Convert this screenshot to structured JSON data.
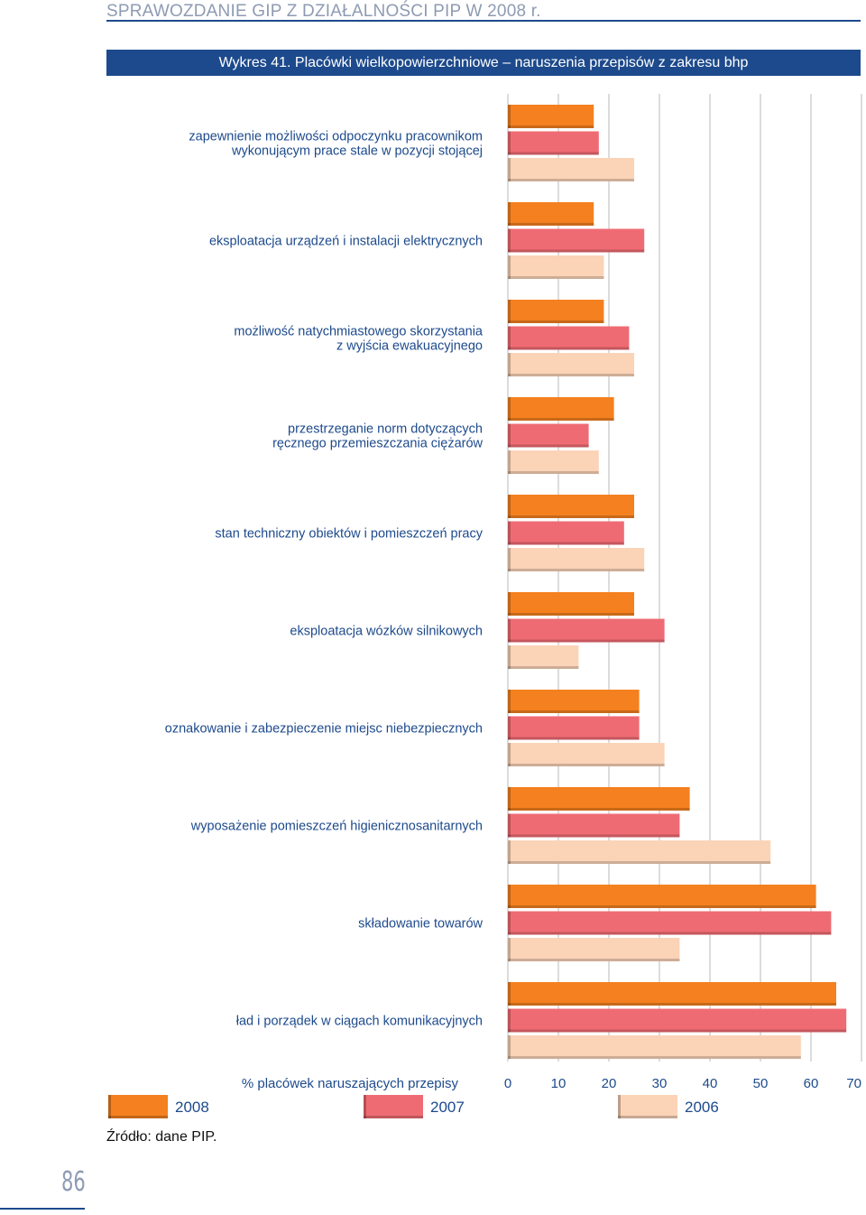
{
  "header": {
    "title": "SPRAWOZDANIE GIP Z DZIAŁALNOŚCI PIP W 2008 r."
  },
  "footer": {
    "source": "Źródło: dane PIP.",
    "page_number": "86"
  },
  "chart_data": {
    "type": "bar",
    "orientation": "horizontal",
    "title": "Wykres 41. Placówki wielkopowierzchniowe – naruszenia przepisów z zakresu bhp",
    "xlabel": "% placówek naruszających przepisy",
    "ylabel": "",
    "xlim": [
      0,
      70
    ],
    "xticks": [
      0,
      10,
      20,
      30,
      40,
      50,
      60,
      70
    ],
    "grid": true,
    "legend_position": "bottom",
    "categories": [
      [
        "zapewnienie możliwości odpoczynku pracownikom",
        "wykonującym prace stale w pozycji stojącej"
      ],
      [
        "eksploatacja urządzeń i instalacji elektrycznych"
      ],
      [
        "możliwość natychmiastowego skorzystania",
        "z wyjścia ewakuacyjnego"
      ],
      [
        "przestrzeganie norm dotyczących",
        "ręcznego przemieszczania ciężarów"
      ],
      [
        "stan techniczny obiektów i pomieszczeń pracy"
      ],
      [
        "eksploatacja wózków silnikowych"
      ],
      [
        "oznakowanie i zabezpieczenie miejsc niebezpiecznych"
      ],
      [
        "wyposażenie pomieszczeń higienicznosanitarnych"
      ],
      [
        "składowanie towarów"
      ],
      [
        "ład i porządek w ciągach komunikacyjnych"
      ]
    ],
    "series": [
      {
        "name": "2008",
        "color": "#f4801f",
        "values": [
          17,
          17,
          19,
          21,
          25,
          25,
          26,
          36,
          61,
          65
        ]
      },
      {
        "name": "2007",
        "color": "#ef6b73",
        "values": [
          18,
          27,
          24,
          16,
          23,
          31,
          26,
          34,
          64,
          67
        ]
      },
      {
        "name": "2006",
        "color": "#fbd3b7",
        "values": [
          25,
          19,
          25,
          18,
          27,
          14,
          31,
          52,
          34,
          58
        ]
      }
    ]
  }
}
